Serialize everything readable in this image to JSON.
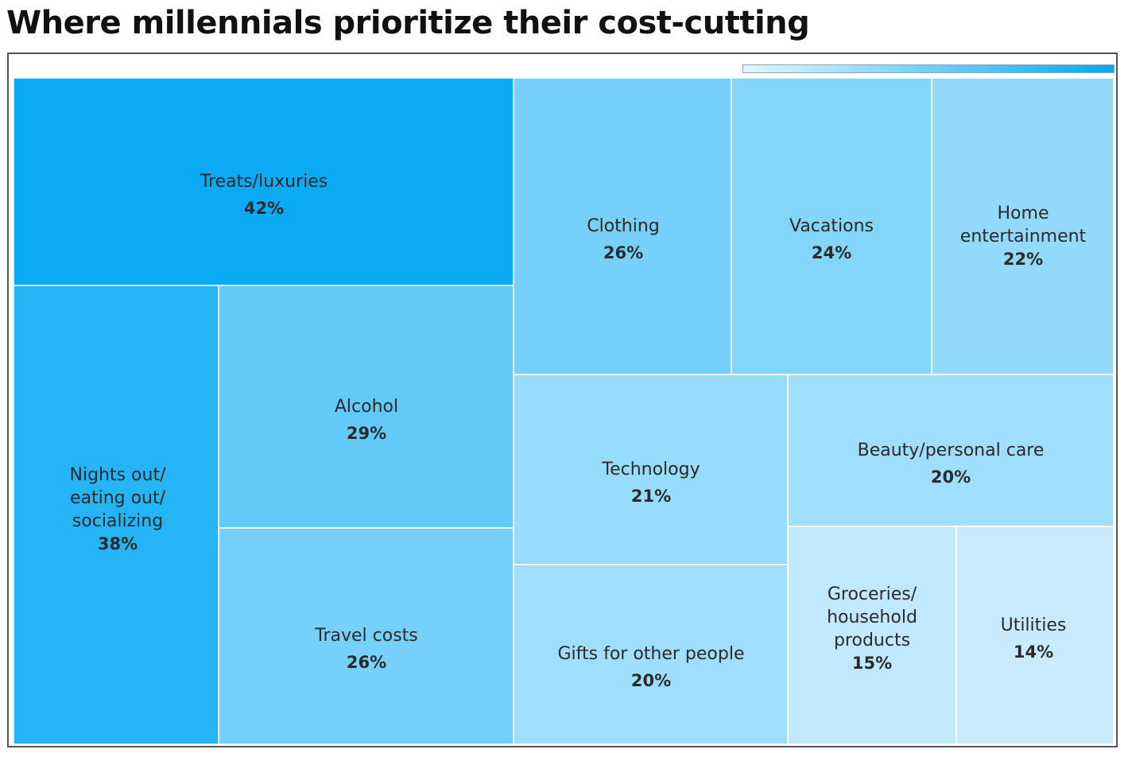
{
  "title": "Where millennials prioritize their cost-cutting",
  "colors": {
    "max": "#03a9f4",
    "min": "#e3f5ff",
    "label_text": "#2a2a2a",
    "cell_border": "#ffffff"
  },
  "chart_data": {
    "type": "treemap",
    "title": "Where millennials prioritize their cost-cutting",
    "unit": "%",
    "color_scale": {
      "min_value": 10,
      "max_value": 43
    },
    "series": [
      {
        "name": "Treats/luxuries",
        "lines": [
          "Treats/luxuries"
        ],
        "value": 42
      },
      {
        "name": "Nights out/ eating out/ socializing",
        "lines": [
          "Nights out/",
          "eating out/",
          "socializing"
        ],
        "value": 38
      },
      {
        "name": "Alcohol",
        "lines": [
          "Alcohol"
        ],
        "value": 29
      },
      {
        "name": "Travel costs",
        "lines": [
          "Travel costs"
        ],
        "value": 26
      },
      {
        "name": "Clothing",
        "lines": [
          "Clothing"
        ],
        "value": 26
      },
      {
        "name": "Vacations",
        "lines": [
          "Vacations"
        ],
        "value": 24
      },
      {
        "name": "Home entertainment",
        "lines": [
          "Home",
          "entertainment"
        ],
        "value": 22
      },
      {
        "name": "Technology",
        "lines": [
          "Technology"
        ],
        "value": 21
      },
      {
        "name": "Beauty/personal care",
        "lines": [
          "Beauty/personal care"
        ],
        "value": 20
      },
      {
        "name": "Gifts for other people",
        "lines": [
          "Gifts for other people"
        ],
        "value": 20
      },
      {
        "name": "Groceries/ household products",
        "lines": [
          "Groceries/",
          "household",
          "products"
        ],
        "value": 15
      },
      {
        "name": "Utilities",
        "lines": [
          "Utilities"
        ],
        "value": 14
      }
    ]
  }
}
